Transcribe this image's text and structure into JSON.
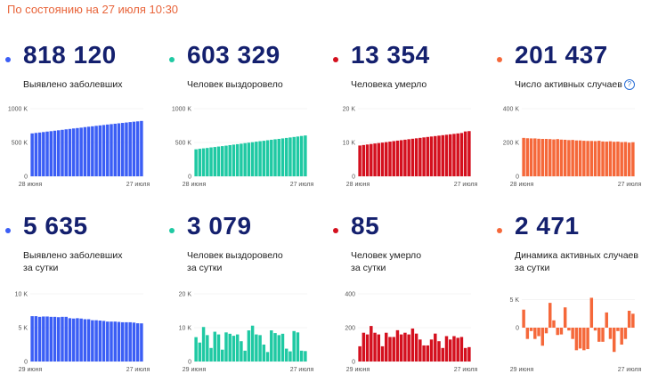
{
  "header": {
    "status": "По состоянию на 27 июля 10:30"
  },
  "colors": {
    "blue": "#3b5ef5",
    "green": "#1fc9a3",
    "red": "#d4101e",
    "orange": "#f5683a",
    "value": "#14206e"
  },
  "cards": [
    {
      "value": "818 120",
      "label": "Выявлено заболевших",
      "color": "#3b5ef5",
      "help": false
    },
    {
      "value": "603 329",
      "label": "Человек выздоровело",
      "color": "#1fc9a3",
      "help": false
    },
    {
      "value": "13 354",
      "label": "Человека умерло",
      "color": "#d4101e",
      "help": false
    },
    {
      "value": "201 437",
      "label": "Число активных случаев",
      "color": "#f5683a",
      "help": true,
      "help_icon": "question-circle-icon"
    },
    {
      "value": "5 635",
      "label": "Выявлено заболевших\nза сутки",
      "color": "#3b5ef5",
      "help": false
    },
    {
      "value": "3 079",
      "label": "Человек выздоровело\nза сутки",
      "color": "#1fc9a3",
      "help": false
    },
    {
      "value": "85",
      "label": "Человек умерло\nза сутки",
      "color": "#d4101e",
      "help": false
    },
    {
      "value": "2 471",
      "label": "Динамика активных случаев\nза сутки",
      "color": "#f5683a",
      "help": false
    }
  ],
  "chart_data": [
    {
      "type": "bar",
      "color": "#3b5ef5",
      "yticks": [
        "1000 K",
        "500 K",
        "0"
      ],
      "ylim": [
        0,
        1000000
      ],
      "xlabels": [
        "28 июня",
        "27 июля"
      ],
      "values": [
        634000,
        641000,
        647000,
        654000,
        661000,
        667000,
        674000,
        680000,
        687000,
        694000,
        700000,
        707000,
        713000,
        719000,
        727000,
        733000,
        739000,
        746000,
        752000,
        758000,
        765000,
        771000,
        777000,
        783000,
        789000,
        795000,
        801000,
        807000,
        812000,
        818120
      ]
    },
    {
      "type": "bar",
      "color": "#1fc9a3",
      "yticks": [
        "1000 K",
        "500 K",
        "0"
      ],
      "ylim": [
        0,
        1000000
      ],
      "xlabels": [
        "28 июня",
        "27 июля"
      ],
      "values": [
        399000,
        407000,
        413000,
        419000,
        427000,
        433000,
        440000,
        446000,
        453000,
        461000,
        468000,
        475000,
        482000,
        490000,
        497000,
        504000,
        512000,
        519000,
        525000,
        533000,
        540000,
        547000,
        553000,
        560000,
        567000,
        574000,
        581000,
        588000,
        596000,
        603329
      ]
    },
    {
      "type": "bar",
      "color": "#d4101e",
      "yticks": [
        "20 K",
        "10 K",
        "0"
      ],
      "ylim": [
        0,
        20000
      ],
      "xlabels": [
        "28 июня",
        "27 июля"
      ],
      "values": [
        9100,
        9250,
        9400,
        9550,
        9700,
        9830,
        9960,
        10100,
        10250,
        10400,
        10550,
        10680,
        10820,
        10960,
        11100,
        11230,
        11360,
        11500,
        11630,
        11760,
        11890,
        12020,
        12150,
        12280,
        12410,
        12540,
        12670,
        12800,
        13250,
        13354
      ]
    },
    {
      "type": "bar",
      "color": "#f5683a",
      "yticks": [
        "400 K",
        "200 K",
        "0"
      ],
      "ylim": [
        0,
        400000
      ],
      "xlabels": [
        "28 июня",
        "27 июля"
      ],
      "values": [
        227000,
        225000,
        224000,
        224000,
        222000,
        221000,
        221000,
        220000,
        218000,
        220000,
        217000,
        216000,
        214000,
        215000,
        212000,
        212000,
        210000,
        209000,
        209000,
        208000,
        210000,
        206000,
        205000,
        207000,
        204000,
        205000,
        202000,
        203000,
        199000,
        201437
      ]
    },
    {
      "type": "bar",
      "color": "#3b5ef5",
      "yticks": [
        "10 K",
        "5 K",
        "0"
      ],
      "ylim": [
        0,
        10000
      ],
      "xlabels": [
        "29 июня",
        "27 июля"
      ],
      "values": [
        6700,
        6700,
        6600,
        6650,
        6650,
        6600,
        6600,
        6550,
        6600,
        6600,
        6400,
        6350,
        6400,
        6350,
        6250,
        6250,
        6100,
        6100,
        6050,
        6000,
        5900,
        5900,
        5900,
        5850,
        5800,
        5800,
        5800,
        5750,
        5650,
        5635
      ]
    },
    {
      "type": "bar",
      "color": "#1fc9a3",
      "yticks": [
        "20 K",
        "10 K",
        "0"
      ],
      "ylim": [
        0,
        20000
      ],
      "xlabels": [
        "29 июня",
        "27 июля"
      ],
      "values": [
        7200,
        5600,
        10200,
        7800,
        4000,
        8800,
        8000,
        3500,
        8600,
        8200,
        7600,
        8000,
        6000,
        3200,
        9200,
        10600,
        8000,
        7800,
        5000,
        2800,
        9200,
        8400,
        7800,
        8200,
        3800,
        3000,
        9000,
        8600,
        3200,
        3079
      ]
    },
    {
      "type": "bar",
      "color": "#d4101e",
      "yticks": [
        "400",
        "200",
        "0"
      ],
      "ylim": [
        0,
        400
      ],
      "xlabels": [
        "29 июня",
        "27 июля"
      ],
      "values": [
        90,
        170,
        160,
        210,
        170,
        160,
        90,
        170,
        145,
        145,
        185,
        160,
        170,
        160,
        195,
        165,
        130,
        95,
        95,
        130,
        165,
        120,
        80,
        150,
        130,
        150,
        140,
        145,
        80,
        85
      ]
    },
    {
      "type": "bar",
      "color": "#f5683a",
      "yticks": [
        "5 K",
        "0"
      ],
      "ylim": [
        -6000,
        6000
      ],
      "xlabels": [
        "29 июня",
        "27 июля"
      ],
      "values": [
        3200,
        -2000,
        -600,
        -2000,
        -1500,
        -3200,
        -1000,
        4400,
        1300,
        -1300,
        -1200,
        3600,
        -500,
        -2000,
        -4000,
        -3700,
        -4000,
        -3800,
        5300,
        -500,
        -2500,
        -2500,
        2700,
        -2000,
        -4300,
        -600,
        -3000,
        -2000,
        3000,
        2471
      ]
    }
  ]
}
